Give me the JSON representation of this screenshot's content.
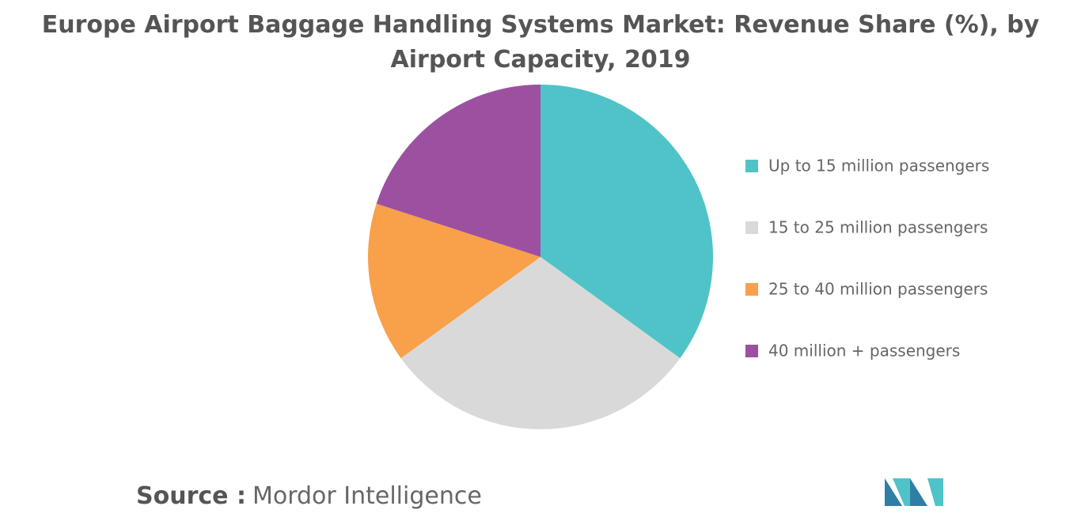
{
  "chart_data": {
    "type": "pie",
    "title": "Europe Airport Baggage Handling Systems Market: Revenue Share (%), by Airport Capacity, 2019",
    "categories": [
      "Up to 15 million passengers",
      "15 to 25 million passengers",
      "25 to 40 million passengers",
      "40 million + passengers"
    ],
    "values": [
      35,
      30,
      15,
      20
    ],
    "colors": [
      "#4fc3c8",
      "#d9d9d9",
      "#f9a04a",
      "#9b51a0"
    ],
    "legend": "right"
  },
  "source": {
    "label": "Source :",
    "text": "Mordor Intelligence"
  }
}
